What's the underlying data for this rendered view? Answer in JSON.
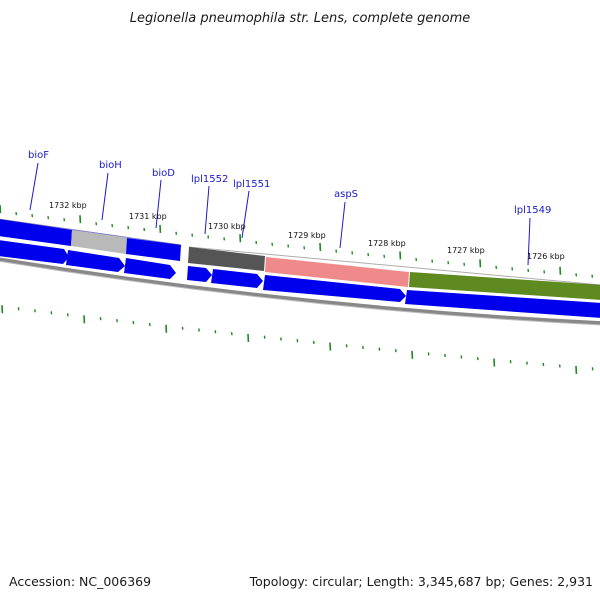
{
  "title": "Legionella pneumophila str. Lens, complete genome",
  "footer": {
    "accession": "Accession: NC_006369",
    "summary": "Topology: circular; Length: 3,345,687 bp; Genes: 2,931"
  },
  "colors": {
    "forward_cds": "#0000ee",
    "reverse_cds": "#0000ee",
    "grey_gene": "#b9b9b9",
    "dark_gene": "#555555",
    "rna_gene": "#f08a8a",
    "green_gene": "#5e8a1f",
    "backbone": "#888888",
    "ticks": "#1f8a1f",
    "gene_label": "#1a1acc"
  },
  "gene_labels": [
    "bioF",
    "bioH",
    "bioD",
    "lpl1552",
    "lpl1551",
    "aspS",
    "lpl1549"
  ],
  "scale_labels": [
    "1732 kbp",
    "1731 kbp",
    "1730 kbp",
    "1729 kbp",
    "1728 kbp",
    "1727 kbp",
    "1726 kbp"
  ]
}
